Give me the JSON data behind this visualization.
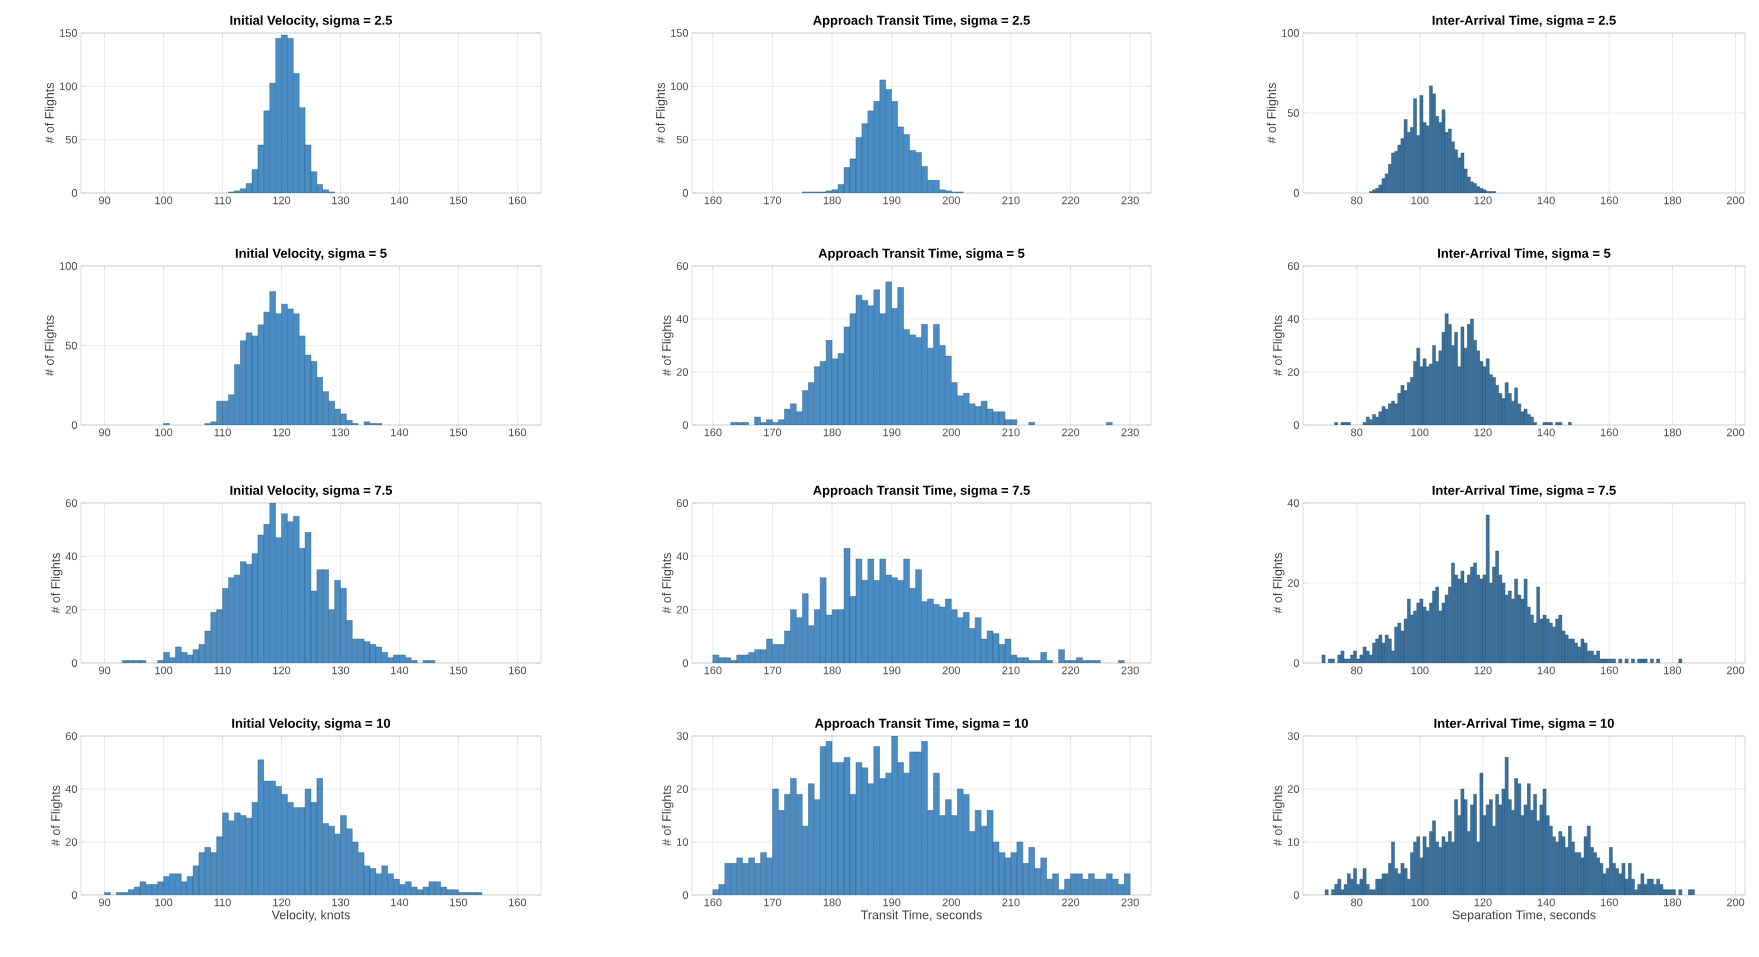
{
  "chart_data": [
    {
      "type": "histogram",
      "title": "Initial Velocity, sigma = 2.5",
      "ylabel": "# of Flights",
      "color": "#4a8cc4",
      "grid": true,
      "xlim": [
        86,
        164
      ],
      "ylim": [
        0,
        150
      ],
      "xticks": [
        90,
        100,
        110,
        120,
        130,
        140,
        150,
        160
      ],
      "yticks": [
        0,
        50,
        100,
        150
      ],
      "bins": [
        111,
        112,
        113,
        114,
        115,
        116,
        117,
        118,
        119,
        120,
        121,
        122,
        123,
        124,
        125,
        126,
        127,
        128,
        129
      ],
      "values": [
        1,
        2,
        4,
        9,
        22,
        45,
        77,
        103,
        145,
        148,
        145,
        112,
        80,
        45,
        20,
        8,
        3,
        1
      ]
    },
    {
      "type": "histogram",
      "title": "Approach Transit Time, sigma = 2.5",
      "ylabel": "# of Flights",
      "color": "#4a8cc4",
      "grid": true,
      "xlim": [
        156.5,
        233.5
      ],
      "ylim": [
        0,
        150
      ],
      "xticks": [
        160,
        170,
        180,
        190,
        200,
        210,
        220,
        230
      ],
      "yticks": [
        0,
        50,
        100,
        150
      ],
      "bins": [
        175,
        176,
        177,
        178,
        179,
        180,
        181,
        182,
        183,
        184,
        185,
        186,
        187,
        188,
        189,
        190,
        191,
        192,
        193,
        194,
        195,
        196,
        197,
        198,
        199,
        200,
        201,
        202
      ],
      "values": [
        1,
        1,
        1,
        1,
        2,
        3,
        8,
        24,
        32,
        52,
        65,
        77,
        86,
        106,
        97,
        86,
        62,
        55,
        40,
        38,
        25,
        12,
        12,
        3,
        2,
        1,
        1
      ]
    },
    {
      "type": "histogram",
      "title": "Inter-Arrival Time, sigma = 2.5",
      "ylabel": "# of Flights",
      "color": "#3a729f",
      "grid": true,
      "xlim": [
        63,
        203
      ],
      "ylim": [
        0,
        100
      ],
      "xticks": [
        80,
        100,
        120,
        140,
        160,
        180,
        200
      ],
      "yticks": [
        0,
        50,
        100
      ],
      "bins": [
        84,
        85,
        86,
        87,
        88,
        89,
        90,
        91,
        92,
        93,
        94,
        95,
        96,
        97,
        98,
        99,
        100,
        101,
        102,
        103,
        104,
        105,
        106,
        107,
        108,
        109,
        110,
        111,
        112,
        113,
        114,
        115,
        116,
        117,
        118,
        119,
        120,
        121,
        122,
        123,
        124
      ],
      "values": [
        1,
        2,
        3,
        5,
        9,
        12,
        18,
        25,
        26,
        30,
        34,
        46,
        38,
        41,
        59,
        36,
        61,
        44,
        42,
        67,
        62,
        48,
        44,
        52,
        38,
        40,
        32,
        27,
        22,
        25,
        15,
        10,
        7,
        6,
        4,
        3,
        2,
        1,
        1,
        1
      ]
    },
    {
      "type": "histogram",
      "title": "Initial Velocity, sigma = 5",
      "ylabel": "# of Flights",
      "color": "#4a8cc4",
      "grid": true,
      "xlim": [
        86,
        164
      ],
      "ylim": [
        0,
        100
      ],
      "xticks": [
        90,
        100,
        110,
        120,
        130,
        140,
        150,
        160
      ],
      "yticks": [
        0,
        50,
        100
      ],
      "bins": [
        100,
        101,
        102,
        103,
        104,
        105,
        106,
        107,
        108,
        109,
        110,
        111,
        112,
        113,
        114,
        115,
        116,
        117,
        118,
        119,
        120,
        121,
        122,
        123,
        124,
        125,
        126,
        127,
        128,
        129,
        130,
        131,
        132,
        133,
        134,
        135,
        136,
        137
      ],
      "values": [
        1,
        0,
        0,
        0,
        0,
        0,
        0,
        1,
        2,
        15,
        15,
        19,
        38,
        53,
        58,
        56,
        63,
        71,
        84,
        70,
        76,
        73,
        70,
        56,
        44,
        40,
        30,
        21,
        15,
        10,
        7,
        3,
        1,
        0,
        2,
        1,
        1
      ]
    },
    {
      "type": "histogram",
      "title": "Approach Transit Time, sigma = 5",
      "ylabel": "# of Flights",
      "color": "#4a8cc4",
      "grid": true,
      "xlim": [
        156.5,
        233.5
      ],
      "ylim": [
        0,
        60
      ],
      "xticks": [
        160,
        170,
        180,
        190,
        200,
        210,
        220,
        230
      ],
      "yticks": [
        0,
        20,
        40,
        60
      ],
      "bins": [
        163,
        164,
        165,
        166,
        167,
        168,
        169,
        170,
        171,
        172,
        173,
        174,
        175,
        176,
        177,
        178,
        179,
        180,
        181,
        182,
        183,
        184,
        185,
        186,
        187,
        188,
        189,
        190,
        191,
        192,
        193,
        194,
        195,
        196,
        197,
        198,
        199,
        200,
        201,
        202,
        203,
        204,
        205,
        206,
        207,
        208,
        209,
        210,
        211,
        212,
        213,
        214,
        215,
        216,
        217,
        218,
        219,
        220,
        221,
        222,
        223,
        224,
        225,
        226,
        227
      ],
      "values": [
        1,
        1,
        1,
        0,
        3,
        1,
        2,
        1,
        2,
        6,
        8,
        5,
        13,
        16,
        22,
        24,
        32,
        25,
        27,
        37,
        42,
        49,
        47,
        45,
        51,
        42,
        54,
        44,
        52,
        36,
        34,
        33,
        38,
        29,
        38,
        30,
        26,
        16,
        11,
        12,
        8,
        7,
        9,
        6,
        5,
        5,
        2,
        2,
        0,
        0,
        1,
        0,
        0,
        0,
        0,
        0,
        0,
        0,
        0,
        0,
        0,
        0,
        0,
        1
      ]
    },
    {
      "type": "histogram",
      "title": "Inter-Arrival Time, sigma = 5",
      "ylabel": "# of Flights",
      "color": "#3a729f",
      "grid": true,
      "xlim": [
        63,
        203
      ],
      "ylim": [
        0,
        60
      ],
      "xticks": [
        80,
        100,
        120,
        140,
        160,
        180,
        200
      ],
      "yticks": [
        0,
        20,
        40,
        60
      ],
      "bins": [
        73,
        74,
        75,
        76,
        77,
        78,
        79,
        80,
        81,
        82,
        83,
        84,
        85,
        86,
        87,
        88,
        89,
        90,
        91,
        92,
        93,
        94,
        95,
        96,
        97,
        98,
        99,
        100,
        101,
        102,
        103,
        104,
        105,
        106,
        107,
        108,
        109,
        110,
        111,
        112,
        113,
        114,
        115,
        116,
        117,
        118,
        119,
        120,
        121,
        122,
        123,
        124,
        125,
        126,
        127,
        128,
        129,
        130,
        131,
        132,
        133,
        134,
        135,
        136,
        137,
        138,
        139,
        140,
        141,
        142,
        143,
        144,
        145,
        146,
        147,
        148
      ],
      "values": [
        1,
        0,
        1,
        1,
        1,
        0,
        0,
        0,
        0,
        1,
        3,
        2,
        4,
        3,
        5,
        7,
        6,
        8,
        9,
        8,
        12,
        15,
        13,
        16,
        18,
        24,
        29,
        22,
        25,
        22,
        23,
        30,
        24,
        28,
        35,
        42,
        38,
        30,
        35,
        22,
        37,
        29,
        38,
        40,
        32,
        28,
        24,
        22,
        25,
        19,
        18,
        15,
        12,
        10,
        16,
        12,
        9,
        14,
        8,
        5,
        6,
        4,
        3,
        1,
        0,
        0,
        1,
        1,
        1,
        0,
        1,
        1,
        0,
        0,
        1
      ]
    },
    {
      "type": "histogram",
      "title": "Initial Velocity, sigma = 7.5",
      "ylabel": "# of Flights",
      "color": "#4a8cc4",
      "grid": true,
      "xlim": [
        86,
        164
      ],
      "ylim": [
        0,
        60
      ],
      "xticks": [
        90,
        100,
        110,
        120,
        130,
        140,
        150,
        160
      ],
      "yticks": [
        0,
        20,
        40,
        60
      ],
      "bins": [
        93,
        94,
        95,
        96,
        97,
        98,
        99,
        100,
        101,
        102,
        103,
        104,
        105,
        106,
        107,
        108,
        109,
        110,
        111,
        112,
        113,
        114,
        115,
        116,
        117,
        118,
        119,
        120,
        121,
        122,
        123,
        124,
        125,
        126,
        127,
        128,
        129,
        130,
        131,
        132,
        133,
        134,
        135,
        136,
        137,
        138,
        139,
        140,
        141,
        142,
        143,
        144,
        145,
        146
      ],
      "values": [
        1,
        1,
        1,
        1,
        0,
        0,
        1,
        4,
        2,
        6,
        4,
        3,
        5,
        7,
        12,
        19,
        20,
        28,
        32,
        33,
        38,
        37,
        41,
        48,
        52,
        60,
        47,
        56,
        53,
        55,
        43,
        49,
        27,
        35,
        35,
        20,
        31,
        28,
        16,
        9,
        9,
        8,
        7,
        6,
        4,
        2,
        3,
        3,
        2,
        1,
        0,
        1,
        1
      ]
    },
    {
      "type": "histogram",
      "title": "Approach Transit Time, sigma = 7.5",
      "ylabel": "# of Flights",
      "color": "#4a8cc4",
      "grid": true,
      "xlim": [
        156.5,
        233.5
      ],
      "ylim": [
        0,
        60
      ],
      "xticks": [
        160,
        170,
        180,
        190,
        200,
        210,
        220,
        230
      ],
      "yticks": [
        0,
        20,
        40,
        60
      ],
      "bins": [
        160,
        161,
        162,
        163,
        164,
        165,
        166,
        167,
        168,
        169,
        170,
        171,
        172,
        173,
        174,
        175,
        176,
        177,
        178,
        179,
        180,
        181,
        182,
        183,
        184,
        185,
        186,
        187,
        188,
        189,
        190,
        191,
        192,
        193,
        194,
        195,
        196,
        197,
        198,
        199,
        200,
        201,
        202,
        203,
        204,
        205,
        206,
        207,
        208,
        209,
        210,
        211,
        212,
        213,
        214,
        215,
        216,
        217,
        218,
        219,
        220,
        221,
        222,
        223,
        224,
        225,
        226,
        227,
        228,
        229
      ],
      "values": [
        3,
        2,
        2,
        1,
        3,
        3,
        4,
        5,
        5,
        9,
        7,
        7,
        12,
        20,
        17,
        26,
        14,
        20,
        32,
        18,
        20,
        20,
        43,
        25,
        39,
        31,
        39,
        31,
        39,
        33,
        32,
        31,
        39,
        28,
        35,
        23,
        24,
        22,
        21,
        24,
        20,
        17,
        19,
        13,
        17,
        9,
        12,
        11,
        7,
        9,
        3,
        2,
        2,
        1,
        1,
        4,
        1,
        0,
        5,
        1,
        1,
        2,
        1,
        1,
        1,
        0,
        0,
        0,
        1
      ]
    },
    {
      "type": "histogram",
      "title": "Inter-Arrival Time, sigma = 7.5",
      "ylabel": "# of Flights",
      "color": "#3a729f",
      "grid": true,
      "xlim": [
        63,
        203
      ],
      "ylim": [
        0,
        40
      ],
      "xticks": [
        80,
        100,
        120,
        140,
        160,
        180,
        200
      ],
      "yticks": [
        0,
        20,
        40
      ],
      "bins": [
        69,
        70,
        71,
        72,
        73,
        74,
        75,
        76,
        77,
        78,
        79,
        80,
        81,
        82,
        83,
        84,
        85,
        86,
        87,
        88,
        89,
        90,
        91,
        92,
        93,
        94,
        95,
        96,
        97,
        98,
        99,
        100,
        101,
        102,
        103,
        104,
        105,
        106,
        107,
        108,
        109,
        110,
        111,
        112,
        113,
        114,
        115,
        116,
        117,
        118,
        119,
        120,
        121,
        122,
        123,
        124,
        125,
        126,
        127,
        128,
        129,
        130,
        131,
        132,
        133,
        134,
        135,
        136,
        137,
        138,
        139,
        140,
        141,
        142,
        143,
        144,
        145,
        146,
        147,
        148,
        149,
        150,
        151,
        152,
        153,
        154,
        155,
        156,
        157,
        158,
        159,
        160,
        161,
        162,
        163,
        164,
        165,
        166,
        167,
        168,
        169,
        170,
        171,
        172,
        173,
        174,
        175,
        176,
        177,
        178,
        179,
        180,
        181,
        182,
        183
      ],
      "values": [
        2,
        0,
        1,
        1,
        0,
        2,
        3,
        1,
        1,
        2,
        3,
        1,
        2,
        4,
        3,
        2,
        5,
        6,
        7,
        5,
        7,
        6,
        3,
        9,
        10,
        8,
        11,
        16,
        12,
        13,
        15,
        16,
        14,
        13,
        15,
        18,
        19,
        13,
        15,
        17,
        19,
        25,
        22,
        21,
        23,
        20,
        22,
        24,
        25,
        22,
        21,
        22,
        37,
        20,
        24,
        28,
        22,
        20,
        17,
        18,
        16,
        21,
        17,
        16,
        21,
        14,
        12,
        10,
        19,
        11,
        12,
        11,
        10,
        9,
        11,
        12,
        8,
        7,
        6,
        6,
        5,
        4,
        6,
        5,
        3,
        3,
        2,
        3,
        1,
        1,
        1,
        1,
        1,
        0,
        1,
        0,
        1,
        0,
        1,
        0,
        1,
        1,
        1,
        0,
        1,
        0,
        1,
        0,
        0,
        0,
        0,
        0,
        0,
        1
      ]
    },
    {
      "type": "histogram",
      "title": "Initial Velocity, sigma = 10",
      "xlabel": "Velocity, knots",
      "ylabel": "# of Flights",
      "color": "#4a8cc4",
      "grid": true,
      "xlim": [
        86,
        164
      ],
      "ylim": [
        0,
        60
      ],
      "xticks": [
        90,
        100,
        110,
        120,
        130,
        140,
        150,
        160
      ],
      "yticks": [
        0,
        20,
        40,
        60
      ],
      "bins": [
        90,
        91,
        92,
        93,
        94,
        95,
        96,
        97,
        98,
        99,
        100,
        101,
        102,
        103,
        104,
        105,
        106,
        107,
        108,
        109,
        110,
        111,
        112,
        113,
        114,
        115,
        116,
        117,
        118,
        119,
        120,
        121,
        122,
        123,
        124,
        125,
        126,
        127,
        128,
        129,
        130,
        131,
        132,
        133,
        134,
        135,
        136,
        137,
        138,
        139,
        140,
        141,
        142,
        143,
        144,
        145,
        146,
        147,
        148,
        149,
        150,
        151,
        152,
        153,
        154
      ],
      "values": [
        1,
        0,
        1,
        1,
        2,
        3,
        5,
        4,
        4,
        5,
        7,
        8,
        8,
        5,
        7,
        11,
        16,
        18,
        16,
        22,
        31,
        28,
        31,
        30,
        29,
        35,
        51,
        43,
        43,
        41,
        38,
        35,
        33,
        33,
        40,
        35,
        44,
        27,
        26,
        23,
        30,
        25,
        20,
        16,
        11,
        10,
        8,
        11,
        8,
        6,
        4,
        5,
        3,
        2,
        3,
        5,
        5,
        3,
        2,
        2,
        1,
        1,
        1,
        1
      ]
    },
    {
      "type": "histogram",
      "title": "Approach Transit Time, sigma = 10",
      "xlabel": "Transit Time, seconds",
      "ylabel": "# of Flights",
      "color": "#4a8cc4",
      "grid": true,
      "xlim": [
        156.5,
        233.5
      ],
      "ylim": [
        0,
        30
      ],
      "xticks": [
        160,
        170,
        180,
        190,
        200,
        210,
        220,
        230
      ],
      "yticks": [
        0,
        10,
        20,
        30
      ],
      "bins": [
        160,
        161,
        162,
        163,
        164,
        165,
        166,
        167,
        168,
        169,
        170,
        171,
        172,
        173,
        174,
        175,
        176,
        177,
        178,
        179,
        180,
        181,
        182,
        183,
        184,
        185,
        186,
        187,
        188,
        189,
        190,
        191,
        192,
        193,
        194,
        195,
        196,
        197,
        198,
        199,
        200,
        201,
        202,
        203,
        204,
        205,
        206,
        207,
        208,
        209,
        210,
        211,
        212,
        213,
        214,
        215,
        216,
        217,
        218,
        219,
        220,
        221,
        222,
        223,
        224,
        225,
        226,
        227,
        228,
        229,
        230
      ],
      "values": [
        1,
        2,
        6,
        6,
        7,
        6,
        7,
        6,
        8,
        7,
        20,
        16,
        19,
        22,
        19,
        13,
        21,
        18,
        28,
        29,
        25,
        25,
        26,
        19,
        25,
        24,
        21,
        28,
        22,
        23,
        30,
        25,
        23,
        27,
        27,
        29,
        16,
        23,
        15,
        18,
        15,
        20,
        19,
        12,
        16,
        13,
        16,
        10,
        8,
        7,
        8,
        10,
        6,
        9,
        5,
        7,
        3,
        4,
        1,
        3,
        4,
        4,
        3,
        4,
        3,
        3,
        4,
        3,
        2,
        4
      ]
    },
    {
      "type": "histogram",
      "title": "Inter-Arrival Time, sigma = 10",
      "xlabel": "Separation Time, seconds",
      "ylabel": "# of Flights",
      "color": "#3a729f",
      "grid": true,
      "xlim": [
        63,
        203
      ],
      "ylim": [
        0,
        30
      ],
      "xticks": [
        80,
        100,
        120,
        140,
        160,
        180,
        200
      ],
      "yticks": [
        0,
        10,
        20,
        30
      ],
      "bins": [
        70,
        71,
        72,
        73,
        74,
        75,
        76,
        77,
        78,
        79,
        80,
        81,
        82,
        83,
        84,
        85,
        86,
        87,
        88,
        89,
        90,
        91,
        92,
        93,
        94,
        95,
        96,
        97,
        98,
        99,
        100,
        101,
        102,
        103,
        104,
        105,
        106,
        107,
        108,
        109,
        110,
        111,
        112,
        113,
        114,
        115,
        116,
        117,
        118,
        119,
        120,
        121,
        122,
        123,
        124,
        125,
        126,
        127,
        128,
        129,
        130,
        131,
        132,
        133,
        134,
        135,
        136,
        137,
        138,
        139,
        140,
        141,
        142,
        143,
        144,
        145,
        146,
        147,
        148,
        149,
        150,
        151,
        152,
        153,
        154,
        155,
        156,
        157,
        158,
        159,
        160,
        161,
        162,
        163,
        164,
        165,
        166,
        167,
        168,
        169,
        170,
        171,
        172,
        173,
        174,
        175,
        176,
        177,
        178,
        179,
        180,
        181,
        182,
        183,
        184,
        185,
        186,
        187,
        188,
        189
      ],
      "values": [
        1,
        0,
        1,
        2,
        3,
        1,
        2,
        4,
        3,
        5,
        2,
        3,
        5,
        2,
        1,
        1,
        3,
        3,
        4,
        4,
        6,
        10,
        5,
        4,
        6,
        5,
        3,
        8,
        10,
        11,
        7,
        11,
        9,
        12,
        14,
        10,
        9,
        11,
        10,
        12,
        10,
        18,
        15,
        20,
        18,
        12,
        17,
        19,
        10,
        23,
        15,
        17,
        18,
        13,
        19,
        17,
        20,
        26,
        18,
        16,
        22,
        21,
        15,
        17,
        21,
        16,
        19,
        14,
        17,
        20,
        15,
        13,
        11,
        10,
        12,
        11,
        9,
        13,
        10,
        8,
        8,
        7,
        11,
        13,
        9,
        8,
        7,
        6,
        4,
        5,
        9,
        6,
        5,
        4,
        6,
        3,
        6,
        3,
        1,
        2,
        4,
        2,
        3,
        3,
        2,
        3,
        2,
        1,
        1,
        1,
        1,
        0,
        1,
        0,
        0,
        1,
        1,
        0,
        0
      ]
    }
  ]
}
